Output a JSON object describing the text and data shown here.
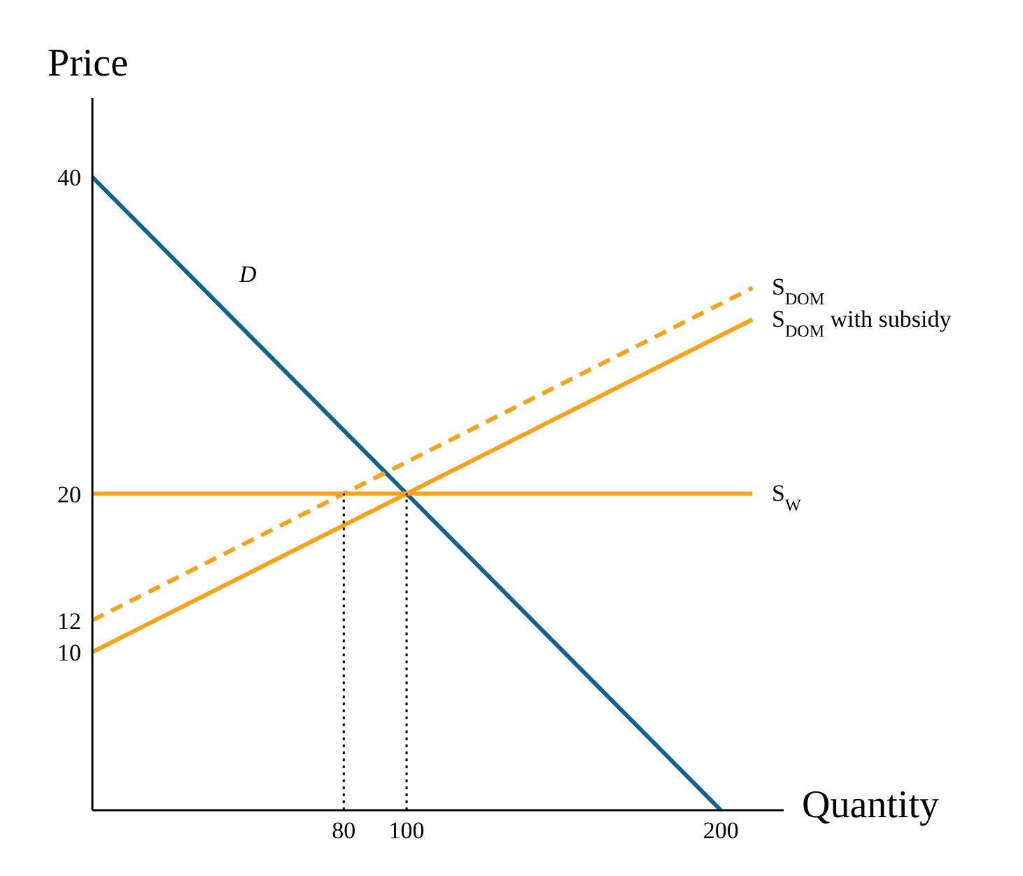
{
  "chart_data": {
    "type": "line",
    "xlabel": "Quantity",
    "ylabel": "Price",
    "xlim": [
      0,
      220
    ],
    "xticks": [
      80,
      100,
      200
    ],
    "ylim": [
      0,
      45
    ],
    "yticks": [
      10,
      12,
      20,
      40
    ],
    "grid": false,
    "legend": false,
    "marker": "none",
    "series": [
      {
        "name": "D",
        "color": "#10628f",
        "x": [
          0,
          200
        ],
        "values": [
          40,
          0
        ],
        "line_style": "solid"
      },
      {
        "name": "S$_{W}$",
        "color": "#f7a21b",
        "x": [
          0,
          210
        ],
        "values": [
          20,
          20
        ],
        "line_style": "solid"
      },
      {
        "name": "S$_{DOM}$",
        "color": "#f7a21b",
        "x": [
          0,
          210
        ],
        "values": [
          12,
          33
        ],
        "line_style": "dashed"
      },
      {
        "name": "S$_{DOM}$ with subsidy",
        "color": "#f7a21b",
        "x": [
          0,
          210
        ],
        "values": [
          10,
          31
        ],
        "line_style": "solid"
      },
      {
        "color": "#000000",
        "x": [
          80,
          80
        ],
        "values": [
          0,
          20
        ],
        "line_style": "dotted"
      },
      {
        "color": "#000000",
        "x": [
          100,
          100
        ],
        "values": [
          0,
          20
        ],
        "line_style": "dotted"
      }
    ]
  }
}
